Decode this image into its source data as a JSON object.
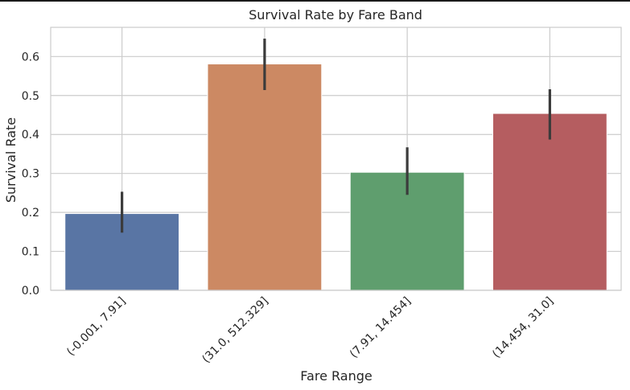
{
  "chart_data": {
    "type": "bar",
    "title": "Survival Rate by Fare Band",
    "xlabel": "Fare Range",
    "ylabel": "Survival Rate",
    "categories": [
      "(-0.001, 7.91]",
      "(31.0, 512.329]",
      "(7.91, 14.454]",
      "(14.454, 31.0]"
    ],
    "values": [
      0.197,
      0.581,
      0.303,
      0.454
    ],
    "error_low": [
      0.148,
      0.514,
      0.245,
      0.387
    ],
    "error_high": [
      0.253,
      0.646,
      0.367,
      0.516
    ],
    "colors": [
      "#5975a4",
      "#cc8963",
      "#5f9e6e",
      "#b55d60"
    ],
    "ylim": [
      0,
      0.675
    ],
    "yticks": [
      0.0,
      0.1,
      0.2,
      0.3,
      0.4,
      0.5,
      0.6
    ],
    "ytick_labels": [
      "0.0",
      "0.1",
      "0.2",
      "0.3",
      "0.4",
      "0.5",
      "0.6"
    ],
    "grid": true,
    "legend": "none",
    "background": "#ffffff",
    "grid_color": "#cccccc",
    "errorbar_color": "#3b3b3b"
  }
}
